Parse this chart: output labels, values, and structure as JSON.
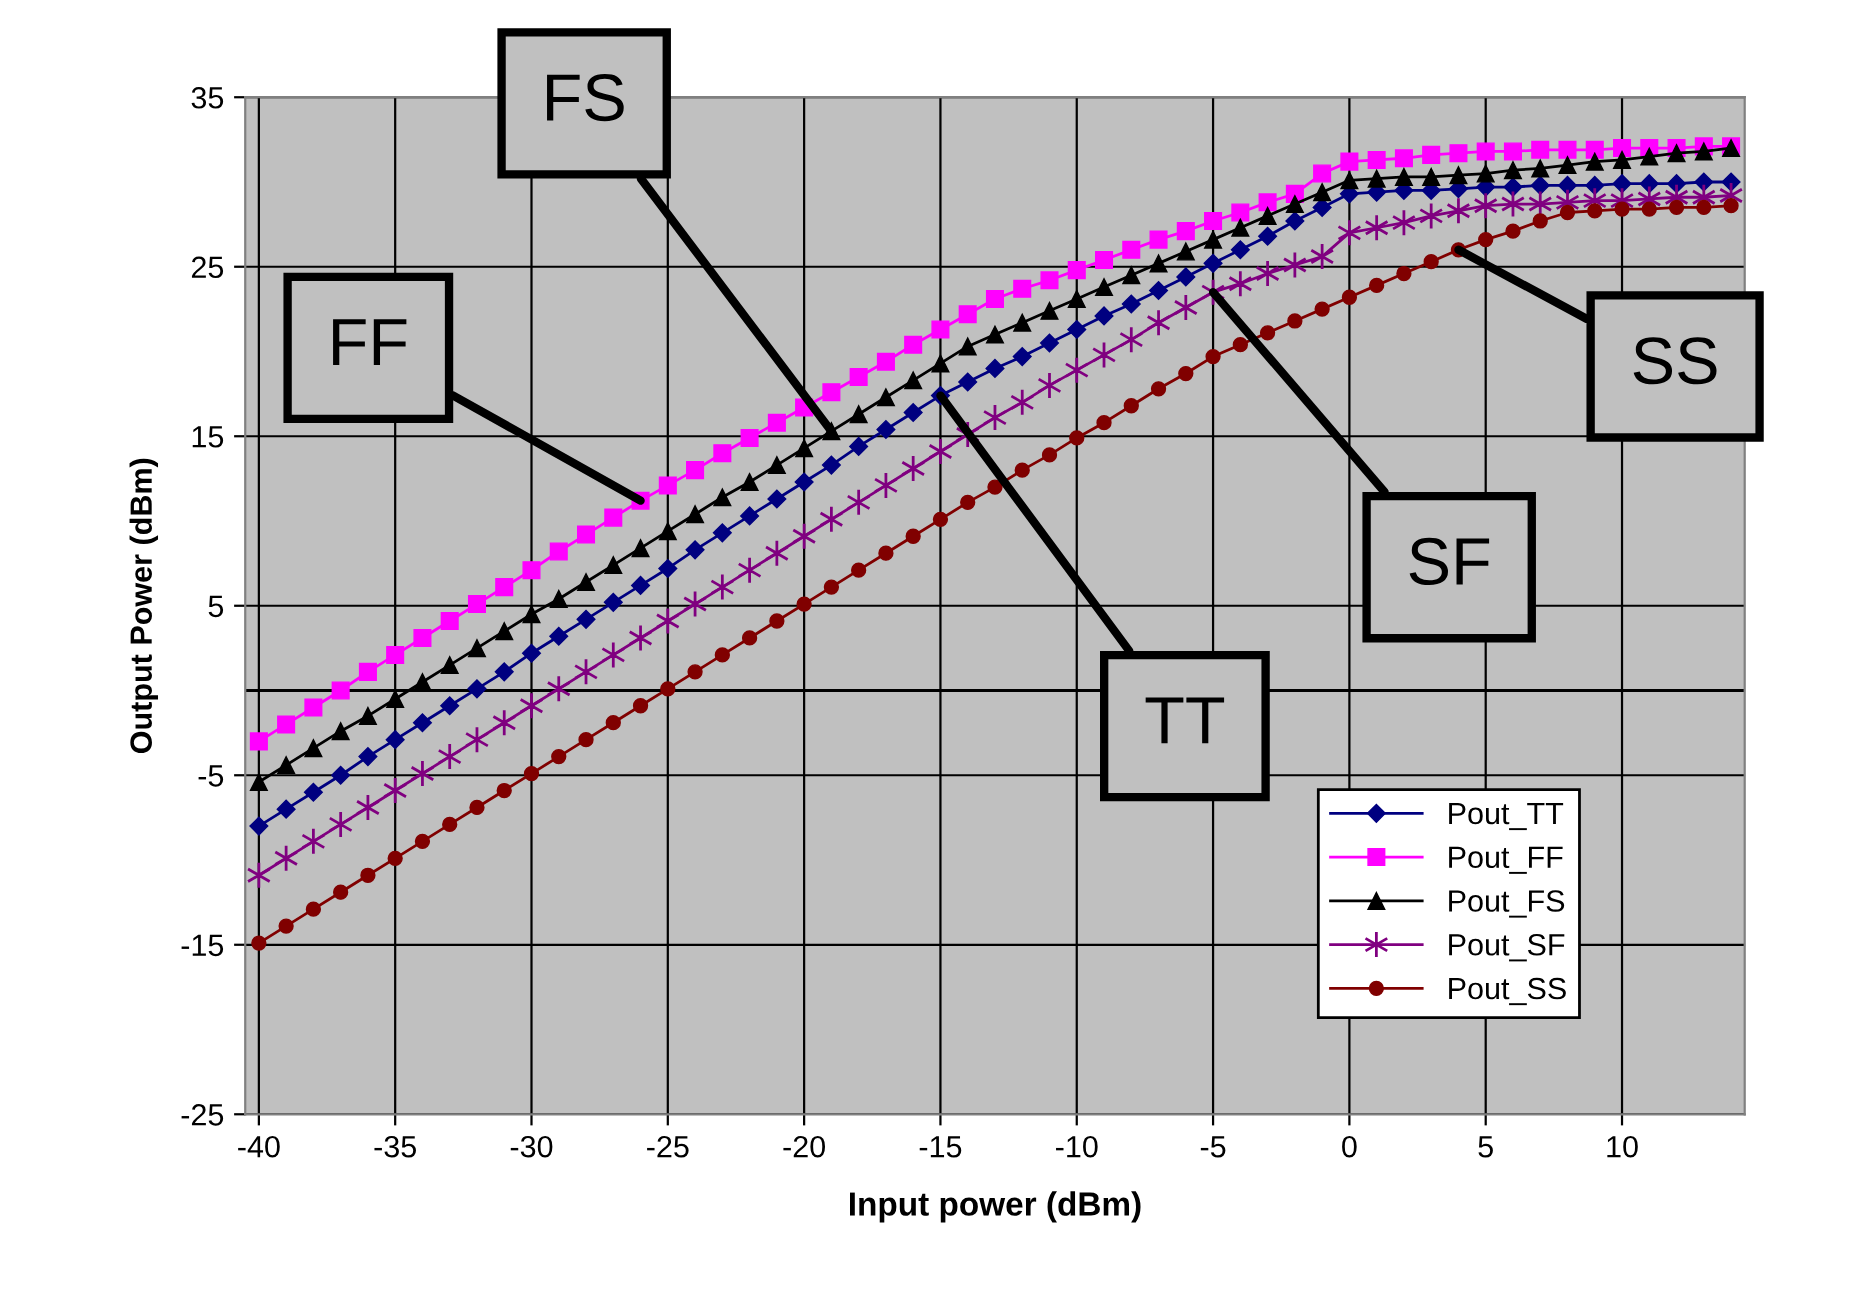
{
  "chart_data": {
    "type": "line",
    "xlabel": "Input power (dBm)",
    "ylabel": "Output Power (dBm)",
    "x": [
      -40,
      -39,
      -38,
      -37,
      -36,
      -35,
      -34,
      -33,
      -32,
      -31,
      -30,
      -29,
      -28,
      -27,
      -26,
      -25,
      -24,
      -23,
      -22,
      -21,
      -20,
      -19,
      -18,
      -17,
      -16,
      -15,
      -14,
      -13,
      -12,
      -11,
      -10,
      -9,
      -8,
      -7,
      -6,
      -5,
      -4,
      -3,
      -2,
      -1,
      0,
      1,
      2,
      3,
      4,
      5,
      6,
      7,
      8,
      9,
      10,
      11,
      12,
      13,
      14
    ],
    "series": [
      {
        "name": "Pout_TT",
        "color": "#000080",
        "marker": "diamond",
        "values": [
          -8.0,
          -7.0,
          -6.0,
          -5.0,
          -3.9,
          -2.9,
          -1.9,
          -0.9,
          0.1,
          1.1,
          2.2,
          3.2,
          4.2,
          5.2,
          6.2,
          7.2,
          8.3,
          9.3,
          10.3,
          11.3,
          12.3,
          13.3,
          14.4,
          15.4,
          16.4,
          17.4,
          18.2,
          19.0,
          19.7,
          20.5,
          21.3,
          22.1,
          22.8,
          23.6,
          24.4,
          25.2,
          26.0,
          26.8,
          27.7,
          28.5,
          29.3,
          29.4,
          29.5,
          29.5,
          29.6,
          29.7,
          29.7,
          29.8,
          29.8,
          29.8,
          29.9,
          29.9,
          29.9,
          30.0,
          30.0
        ]
      },
      {
        "name": "Pout_FF",
        "color": "#ff00ff",
        "marker": "square",
        "values": [
          -3.0,
          -2.0,
          -1.0,
          0.0,
          1.1,
          2.1,
          3.1,
          4.1,
          5.1,
          6.1,
          7.1,
          8.2,
          9.2,
          10.2,
          11.2,
          12.1,
          13.0,
          14.0,
          14.9,
          15.8,
          16.7,
          17.6,
          18.5,
          19.4,
          20.4,
          21.3,
          22.2,
          23.1,
          23.7,
          24.2,
          24.8,
          25.4,
          26.0,
          26.6,
          27.1,
          27.7,
          28.2,
          28.8,
          29.3,
          30.5,
          31.2,
          31.3,
          31.4,
          31.6,
          31.7,
          31.8,
          31.8,
          31.9,
          31.9,
          31.9,
          32.0,
          32.0,
          32.0,
          32.1,
          32.1
        ]
      },
      {
        "name": "Pout_FS",
        "color": "#000000",
        "marker": "triangle",
        "values": [
          -5.4,
          -4.4,
          -3.4,
          -2.4,
          -1.5,
          -0.5,
          0.5,
          1.5,
          2.5,
          3.5,
          4.5,
          5.4,
          6.4,
          7.4,
          8.4,
          9.4,
          10.4,
          11.4,
          12.3,
          13.3,
          14.3,
          15.3,
          16.3,
          17.3,
          18.3,
          19.3,
          20.3,
          21.0,
          21.7,
          22.4,
          23.1,
          23.8,
          24.5,
          25.2,
          25.9,
          26.6,
          27.3,
          28.0,
          28.7,
          29.4,
          30.1,
          30.2,
          30.3,
          30.3,
          30.4,
          30.5,
          30.7,
          30.8,
          31.0,
          31.2,
          31.3,
          31.5,
          31.7,
          31.8,
          32.0
        ]
      },
      {
        "name": "Pout_SF",
        "color": "#800080",
        "marker": "cross",
        "values": [
          -10.9,
          -9.9,
          -8.9,
          -7.9,
          -6.9,
          -5.9,
          -4.9,
          -3.9,
          -2.9,
          -1.9,
          -0.9,
          0.1,
          1.1,
          2.1,
          3.1,
          4.1,
          5.1,
          6.1,
          7.1,
          8.1,
          9.1,
          10.1,
          11.1,
          12.1,
          13.1,
          14.1,
          15.1,
          16.1,
          17.0,
          18.0,
          18.9,
          19.8,
          20.7,
          21.7,
          22.6,
          23.5,
          24.0,
          24.6,
          25.1,
          25.6,
          27.0,
          27.3,
          27.6,
          28.0,
          28.3,
          28.6,
          28.7,
          28.7,
          28.8,
          28.9,
          28.9,
          29.0,
          29.1,
          29.1,
          29.2
        ]
      },
      {
        "name": "Pout_SS",
        "color": "#800000",
        "marker": "circle",
        "values": [
          -14.9,
          -13.9,
          -12.9,
          -11.9,
          -10.9,
          -9.9,
          -8.9,
          -7.9,
          -6.9,
          -5.9,
          -4.9,
          -3.9,
          -2.9,
          -1.9,
          -0.9,
          0.1,
          1.1,
          2.1,
          3.1,
          4.1,
          5.1,
          6.1,
          7.1,
          8.1,
          9.1,
          10.1,
          11.1,
          12.0,
          13.0,
          13.9,
          14.9,
          15.8,
          16.8,
          17.8,
          18.7,
          19.7,
          20.4,
          21.1,
          21.8,
          22.5,
          23.2,
          23.9,
          24.6,
          25.3,
          26.0,
          26.6,
          27.1,
          27.7,
          28.2,
          28.3,
          28.4,
          28.4,
          28.5,
          28.5,
          28.6
        ]
      }
    ],
    "xlim": [
      -40.5,
      14.5
    ],
    "xticks": [
      -40,
      -35,
      -30,
      -25,
      -20,
      -15,
      -10,
      -5,
      0,
      5,
      10
    ],
    "ylim": [
      -25,
      35
    ],
    "yticks": [
      -25,
      -15,
      -5,
      5,
      15,
      25,
      35
    ],
    "ref_lines": [
      {
        "axis": "y",
        "value": 0,
        "color": "#000000"
      }
    ],
    "annotations": [
      {
        "text": "FF",
        "x": -26,
        "y": 11.2
      },
      {
        "text": "FS",
        "x": -19,
        "y": 15.3
      },
      {
        "text": "TT",
        "x": -15,
        "y": 17.4
      },
      {
        "text": "SF",
        "x": -5,
        "y": 23.5
      },
      {
        "text": "SS",
        "x": 4,
        "y": 26.0
      }
    ],
    "grid": true,
    "legend": "bottom right",
    "line_style": "solid"
  }
}
